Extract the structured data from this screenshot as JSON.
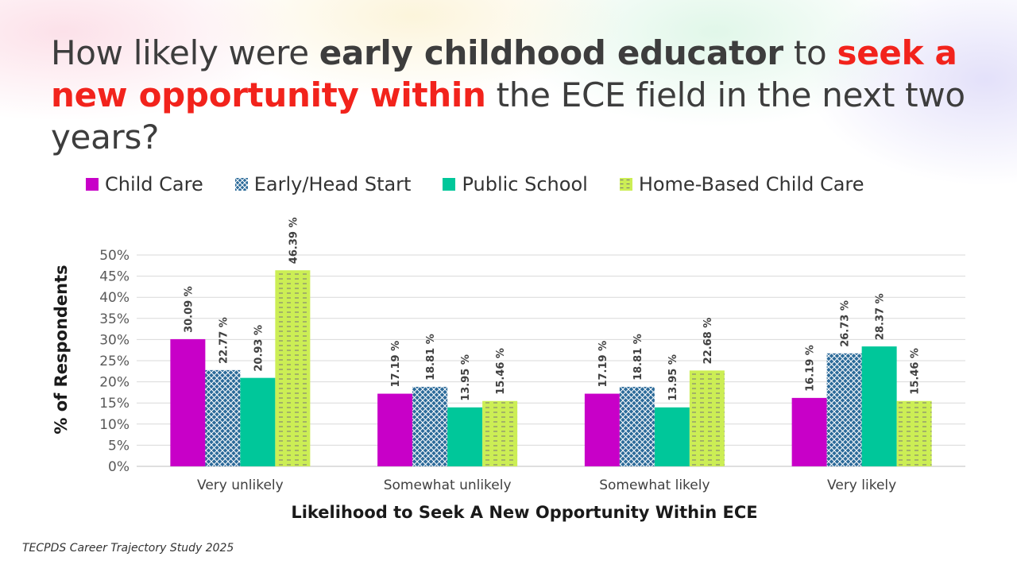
{
  "title": {
    "part1": "How likely were ",
    "part2": "early childhood educator",
    "part3": " to ",
    "part4": "seek a new opportunity within",
    "part5": " the ECE field in the next two years?"
  },
  "footer": "TECPDS Career Trajectory Study 2025",
  "chart_data": {
    "type": "bar",
    "categories": [
      "Very unlikely",
      "Somewhat unlikely",
      "Somewhat likely",
      "Very likely"
    ],
    "series": [
      {
        "name": "Child Care",
        "color": "#c800c8",
        "pattern": "solid",
        "values": [
          30.09,
          17.19,
          17.19,
          16.19
        ]
      },
      {
        "name": "Early/Head Start",
        "color": "#2b6a99",
        "pattern": "crosshatch",
        "values": [
          22.77,
          18.81,
          18.81,
          26.73
        ]
      },
      {
        "name": "Public School",
        "color": "#00c79a",
        "pattern": "solid",
        "values": [
          20.93,
          13.95,
          13.95,
          28.37
        ]
      },
      {
        "name": "Home-Based Child Care",
        "color": "#ccee55",
        "pattern": "dashes",
        "values": [
          46.39,
          15.46,
          22.68,
          15.46
        ]
      }
    ],
    "data_labels": [
      [
        "30.09 %",
        "17.19 %",
        "17.19 %",
        "16.19 %"
      ],
      [
        "22.77 %",
        "18.81 %",
        "18.81 %",
        "26.73 %"
      ],
      [
        "20.93 %",
        "13.95 %",
        "13.95 %",
        "28.37 %"
      ],
      [
        "46.39 %",
        "15.46 %",
        "22.68 %",
        "15.46 %"
      ]
    ],
    "xlabel": "Likelihood to Seek A New Opportunity Within ECE",
    "ylabel": "% of Respondents",
    "ylim": [
      0,
      50
    ],
    "yticks": [
      "0%",
      "5%",
      "10%",
      "15%",
      "20%",
      "25%",
      "30%",
      "35%",
      "40%",
      "45%",
      "50%"
    ],
    "grid": true,
    "legend_position": "top"
  }
}
